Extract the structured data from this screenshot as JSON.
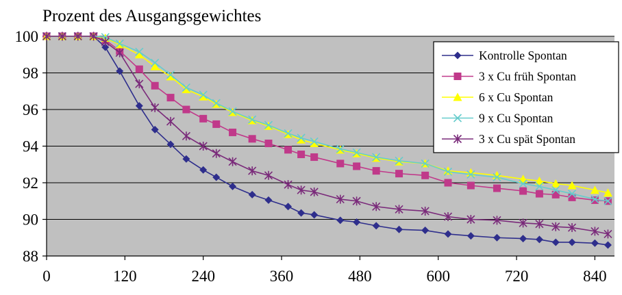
{
  "chart_data": {
    "type": "line",
    "title": "Prozent des Ausgangsgewichtes",
    "xlabel": "",
    "ylabel": "",
    "xlim": [
      0,
      870
    ],
    "ylim": [
      88,
      100
    ],
    "xticks": [
      0,
      120,
      240,
      360,
      480,
      600,
      720,
      840
    ],
    "yticks": [
      88,
      90,
      92,
      94,
      96,
      98,
      100
    ],
    "grid": "horizontal",
    "legend": "top-right",
    "plot_background": "#c0c0c0",
    "series": [
      {
        "name": "Kontrolle Spontan",
        "color": "#2e2e8c",
        "marker": "diamond",
        "x": [
          0,
          24,
          48,
          72,
          90,
          112,
          142,
          166,
          190,
          214,
          240,
          260,
          285,
          315,
          340,
          370,
          390,
          410,
          450,
          475,
          505,
          540,
          580,
          615,
          650,
          690,
          730,
          755,
          780,
          805,
          840,
          860
        ],
        "y": [
          100,
          100,
          100,
          100,
          99.4,
          98.1,
          96.2,
          94.9,
          94.1,
          93.3,
          92.7,
          92.3,
          91.8,
          91.35,
          91.05,
          90.7,
          90.35,
          90.25,
          89.95,
          89.85,
          89.65,
          89.45,
          89.4,
          89.2,
          89.1,
          89.0,
          88.95,
          88.9,
          88.75,
          88.75,
          88.7,
          88.6
        ]
      },
      {
        "name": "3 x Cu früh Spontan",
        "color": "#c0398a",
        "marker": "square",
        "x": [
          0,
          24,
          48,
          72,
          90,
          112,
          142,
          166,
          190,
          214,
          240,
          260,
          285,
          315,
          340,
          370,
          390,
          410,
          450,
          475,
          505,
          540,
          580,
          615,
          650,
          690,
          730,
          755,
          780,
          805,
          840,
          860
        ],
        "y": [
          100,
          100,
          100,
          100,
          99.8,
          99.2,
          98.2,
          97.3,
          96.65,
          96.0,
          95.5,
          95.2,
          94.75,
          94.4,
          94.15,
          93.8,
          93.55,
          93.4,
          93.05,
          92.9,
          92.65,
          92.5,
          92.4,
          92.0,
          91.85,
          91.7,
          91.55,
          91.4,
          91.35,
          91.2,
          91.05,
          91.0
        ]
      },
      {
        "name": "6 x Cu Spontan",
        "color": "#ffff00",
        "marker": "triangle",
        "x": [
          0,
          24,
          48,
          72,
          90,
          112,
          142,
          166,
          190,
          214,
          240,
          260,
          285,
          315,
          340,
          370,
          390,
          410,
          450,
          475,
          505,
          540,
          580,
          615,
          650,
          690,
          730,
          755,
          780,
          805,
          840,
          860
        ],
        "y": [
          100,
          100,
          100,
          100,
          99.9,
          99.55,
          99.0,
          98.35,
          97.8,
          97.1,
          96.7,
          96.3,
          95.85,
          95.4,
          95.1,
          94.65,
          94.35,
          94.15,
          93.8,
          93.6,
          93.35,
          93.15,
          93.05,
          92.65,
          92.55,
          92.4,
          92.2,
          92.1,
          91.95,
          91.85,
          91.6,
          91.45
        ]
      },
      {
        "name": "9 x Cu Spontan",
        "color": "#66cccc",
        "marker": "x",
        "x": [
          0,
          24,
          48,
          72,
          90,
          112,
          142,
          166,
          190,
          214,
          240,
          260,
          285,
          315,
          340,
          370,
          390,
          410,
          450,
          475,
          505,
          540,
          580,
          615,
          650,
          690,
          730,
          755,
          780,
          805,
          840,
          860
        ],
        "y": [
          100,
          100,
          100,
          100,
          99.95,
          99.6,
          99.15,
          98.55,
          97.9,
          97.2,
          96.8,
          96.35,
          95.9,
          95.45,
          95.15,
          94.7,
          94.45,
          94.25,
          93.85,
          93.65,
          93.4,
          93.2,
          93.05,
          92.6,
          92.45,
          92.3,
          91.95,
          91.8,
          91.6,
          91.4,
          91.1,
          91.0
        ]
      },
      {
        "name": "3 x Cu spät Spontan",
        "color": "#7a2a7a",
        "marker": "star",
        "x": [
          0,
          24,
          48,
          72,
          90,
          112,
          142,
          166,
          190,
          214,
          240,
          260,
          285,
          315,
          340,
          370,
          390,
          410,
          450,
          475,
          505,
          540,
          580,
          615,
          650,
          690,
          730,
          755,
          780,
          805,
          840,
          860
        ],
        "y": [
          100,
          100,
          100,
          100,
          99.7,
          99.1,
          97.4,
          96.1,
          95.35,
          94.55,
          94.0,
          93.6,
          93.15,
          92.65,
          92.4,
          91.9,
          91.6,
          91.5,
          91.1,
          91.0,
          90.7,
          90.55,
          90.45,
          90.15,
          90.0,
          89.95,
          89.8,
          89.75,
          89.6,
          89.55,
          89.35,
          89.2
        ]
      }
    ]
  }
}
